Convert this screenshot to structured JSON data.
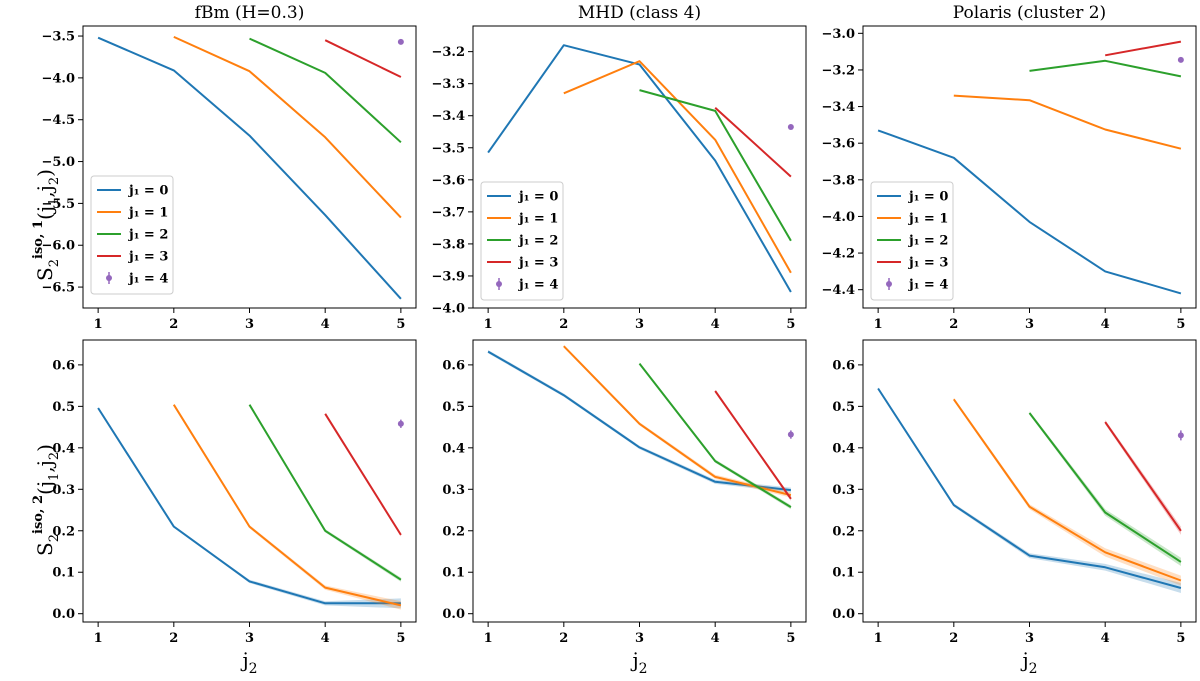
{
  "figure": {
    "y_labels": [
      {
        "base": "S",
        "sub": "2",
        "sup": "iso, 1",
        "args": "(j",
        "args_sub1": "1",
        "args_mid": ",j",
        "args_sub2": "2",
        "args_end": ")"
      },
      {
        "base": "S",
        "sub": "2",
        "sup": "iso, 2",
        "args": "(j",
        "args_sub1": "1",
        "args_mid": ",j",
        "args_sub2": "2",
        "args_end": ")"
      }
    ],
    "x_label": {
      "base": "j",
      "sub": "2"
    }
  },
  "colors": {
    "j1_0": "#1f77b4",
    "j1_1": "#ff7f0e",
    "j1_2": "#2ca02c",
    "j1_3": "#d62728",
    "j1_4": "#9467bd"
  },
  "chart_data": [
    {
      "type": "line",
      "title": "fBm (H=0.3)",
      "x": [
        1,
        2,
        3,
        4,
        5
      ],
      "xticks": [
        "1",
        "2",
        "3",
        "4",
        "5"
      ],
      "ylim": [
        -6.75,
        -3.38
      ],
      "yticks": [
        -3.5,
        -4.0,
        -4.5,
        -5.0,
        -5.5,
        -6.0,
        -6.5
      ],
      "ytick_labels": [
        "−3.5",
        "−4.0",
        "−4.5",
        "−5.0",
        "−5.5",
        "−6.0",
        "−6.5"
      ],
      "legend": "center-left",
      "series": [
        {
          "name": "j₁ = 0",
          "x": [
            1,
            2,
            3,
            4,
            5
          ],
          "values": [
            -3.52,
            -3.91,
            -4.69,
            -5.64,
            -6.64
          ]
        },
        {
          "name": "j₁ = 1",
          "x": [
            2,
            3,
            4,
            5
          ],
          "values": [
            -3.51,
            -3.92,
            -4.71,
            -5.67
          ]
        },
        {
          "name": "j₁ = 2",
          "x": [
            3,
            4,
            5
          ],
          "values": [
            -3.53,
            -3.94,
            -4.77
          ]
        },
        {
          "name": "j₁ = 3",
          "x": [
            4,
            5
          ],
          "values": [
            -3.55,
            -3.99
          ]
        },
        {
          "name": "j₁ = 4",
          "x": [
            5
          ],
          "values": [
            -3.57
          ],
          "marker": "point"
        }
      ]
    },
    {
      "type": "line",
      "title": "MHD (class 4)",
      "x": [
        1,
        2,
        3,
        4,
        5
      ],
      "xticks": [
        "1",
        "2",
        "3",
        "4",
        "5"
      ],
      "ylim": [
        -4.0,
        -3.12
      ],
      "yticks": [
        -3.2,
        -3.3,
        -3.4,
        -3.5,
        -3.6,
        -3.7,
        -3.8,
        -3.9,
        -4.0
      ],
      "ytick_labels": [
        "−3.2",
        "−3.3",
        "−3.4",
        "−3.5",
        "−3.6",
        "−3.7",
        "−3.8",
        "−3.9",
        "−4.0"
      ],
      "legend": "lower-left",
      "series": [
        {
          "name": "j₁ = 0",
          "x": [
            1,
            2,
            3,
            4,
            5
          ],
          "values": [
            -3.515,
            -3.18,
            -3.24,
            -3.54,
            -3.95
          ]
        },
        {
          "name": "j₁ = 1",
          "x": [
            2,
            3,
            4,
            5
          ],
          "values": [
            -3.33,
            -3.23,
            -3.475,
            -3.89
          ]
        },
        {
          "name": "j₁ = 2",
          "x": [
            3,
            4,
            5
          ],
          "values": [
            -3.32,
            -3.385,
            -3.79
          ]
        },
        {
          "name": "j₁ = 3",
          "x": [
            4,
            5
          ],
          "values": [
            -3.375,
            -3.59
          ]
        },
        {
          "name": "j₁ = 4",
          "x": [
            5
          ],
          "values": [
            -3.435
          ],
          "marker": "point"
        }
      ]
    },
    {
      "type": "line",
      "title": "Polaris (cluster 2)",
      "x": [
        1,
        2,
        3,
        4,
        5
      ],
      "xticks": [
        "1",
        "2",
        "3",
        "4",
        "5"
      ],
      "ylim": [
        -4.5,
        -2.96
      ],
      "yticks": [
        -3.0,
        -3.2,
        -3.4,
        -3.6,
        -3.8,
        -4.0,
        -4.2,
        -4.4
      ],
      "ytick_labels": [
        "−3.0",
        "−3.2",
        "−3.4",
        "−3.6",
        "−3.8",
        "−4.0",
        "−4.2",
        "−4.4"
      ],
      "legend": "lower-left",
      "series": [
        {
          "name": "j₁ = 0",
          "x": [
            1,
            2,
            3,
            4,
            5
          ],
          "values": [
            -3.53,
            -3.68,
            -4.03,
            -4.3,
            -4.42
          ]
        },
        {
          "name": "j₁ = 1",
          "x": [
            2,
            3,
            4,
            5
          ],
          "values": [
            -3.34,
            -3.365,
            -3.525,
            -3.63
          ]
        },
        {
          "name": "j₁ = 2",
          "x": [
            3,
            4,
            5
          ],
          "values": [
            -3.205,
            -3.15,
            -3.235
          ]
        },
        {
          "name": "j₁ = 3",
          "x": [
            4,
            5
          ],
          "values": [
            -3.12,
            -3.045
          ]
        },
        {
          "name": "j₁ = 4",
          "x": [
            5
          ],
          "values": [
            -3.145
          ],
          "marker": "point"
        }
      ]
    },
    {
      "type": "line",
      "title": "",
      "x": [
        1,
        2,
        3,
        4,
        5
      ],
      "xticks": [
        "1",
        "2",
        "3",
        "4",
        "5"
      ],
      "ylim": [
        -0.02,
        0.66
      ],
      "yticks": [
        0.0,
        0.1,
        0.2,
        0.3,
        0.4,
        0.5,
        0.6
      ],
      "ytick_labels": [
        "0.0",
        "0.1",
        "0.2",
        "0.3",
        "0.4",
        "0.5",
        "0.6"
      ],
      "legend": "none",
      "series": [
        {
          "name": "j₁ = 0",
          "x": [
            1,
            2,
            3,
            4,
            5
          ],
          "values": [
            0.496,
            0.21,
            0.078,
            0.025,
            0.025
          ],
          "band": [
            0,
            0,
            0.004,
            0.005,
            0.012
          ]
        },
        {
          "name": "j₁ = 1",
          "x": [
            2,
            3,
            4,
            5
          ],
          "values": [
            0.504,
            0.21,
            0.063,
            0.02
          ],
          "band": [
            0,
            0.004,
            0.005,
            0.01
          ]
        },
        {
          "name": "j₁ = 2",
          "x": [
            3,
            4,
            5
          ],
          "values": [
            0.504,
            0.2,
            0.082
          ],
          "band": [
            0,
            0.004,
            0.005
          ]
        },
        {
          "name": "j₁ = 3",
          "x": [
            4,
            5
          ],
          "values": [
            0.482,
            0.19
          ],
          "band": [
            0,
            0.004
          ]
        },
        {
          "name": "j₁ = 4",
          "x": [
            5
          ],
          "values": [
            0.458
          ],
          "err": 0.01,
          "marker": "point"
        }
      ]
    },
    {
      "type": "line",
      "title": "",
      "x": [
        1,
        2,
        3,
        4,
        5
      ],
      "xticks": [
        "1",
        "2",
        "3",
        "4",
        "5"
      ],
      "ylim": [
        -0.02,
        0.66
      ],
      "yticks": [
        0.0,
        0.1,
        0.2,
        0.3,
        0.4,
        0.5,
        0.6
      ],
      "ytick_labels": [
        "0.0",
        "0.1",
        "0.2",
        "0.3",
        "0.4",
        "0.5",
        "0.6"
      ],
      "legend": "none",
      "series": [
        {
          "name": "j₁ = 0",
          "x": [
            1,
            2,
            3,
            4,
            5
          ],
          "values": [
            0.632,
            0.527,
            0.401,
            0.318,
            0.298
          ],
          "band": [
            0.004,
            0.004,
            0.004,
            0.005,
            0.006
          ]
        },
        {
          "name": "j₁ = 1",
          "x": [
            2,
            3,
            4,
            5
          ],
          "values": [
            0.645,
            0.458,
            0.33,
            0.286
          ],
          "band": [
            0.003,
            0.004,
            0.005,
            0.006
          ]
        },
        {
          "name": "j₁ = 2",
          "x": [
            3,
            4,
            5
          ],
          "values": [
            0.603,
            0.368,
            0.257
          ],
          "band": [
            0.003,
            0.004,
            0.005
          ]
        },
        {
          "name": "j₁ = 3",
          "x": [
            4,
            5
          ],
          "values": [
            0.537,
            0.277
          ],
          "band": [
            0.003,
            0.005
          ]
        },
        {
          "name": "j₁ = 4",
          "x": [
            5
          ],
          "values": [
            0.432
          ],
          "err": 0.01,
          "marker": "point"
        }
      ]
    },
    {
      "type": "line",
      "title": "",
      "x": [
        1,
        2,
        3,
        4,
        5
      ],
      "xticks": [
        "1",
        "2",
        "3",
        "4",
        "5"
      ],
      "ylim": [
        -0.02,
        0.66
      ],
      "yticks": [
        0.0,
        0.1,
        0.2,
        0.3,
        0.4,
        0.5,
        0.6
      ],
      "ytick_labels": [
        "0.0",
        "0.1",
        "0.2",
        "0.3",
        "0.4",
        "0.5",
        "0.6"
      ],
      "legend": "none",
      "series": [
        {
          "name": "j₁ = 0",
          "x": [
            1,
            2,
            3,
            4,
            5
          ],
          "values": [
            0.543,
            0.262,
            0.14,
            0.112,
            0.062
          ],
          "band": [
            0.003,
            0.004,
            0.006,
            0.008,
            0.012
          ]
        },
        {
          "name": "j₁ = 1",
          "x": [
            2,
            3,
            4,
            5
          ],
          "values": [
            0.517,
            0.258,
            0.148,
            0.08
          ],
          "band": [
            0.004,
            0.006,
            0.01,
            0.012
          ]
        },
        {
          "name": "j₁ = 2",
          "x": [
            3,
            4,
            5
          ],
          "values": [
            0.484,
            0.244,
            0.125
          ],
          "band": [
            0.004,
            0.008,
            0.01
          ]
        },
        {
          "name": "j₁ = 3",
          "x": [
            4,
            5
          ],
          "values": [
            0.462,
            0.2
          ],
          "band": [
            0.005,
            0.01
          ]
        },
        {
          "name": "j₁ = 4",
          "x": [
            5
          ],
          "values": [
            0.43
          ],
          "err": 0.012,
          "marker": "point"
        }
      ]
    }
  ]
}
